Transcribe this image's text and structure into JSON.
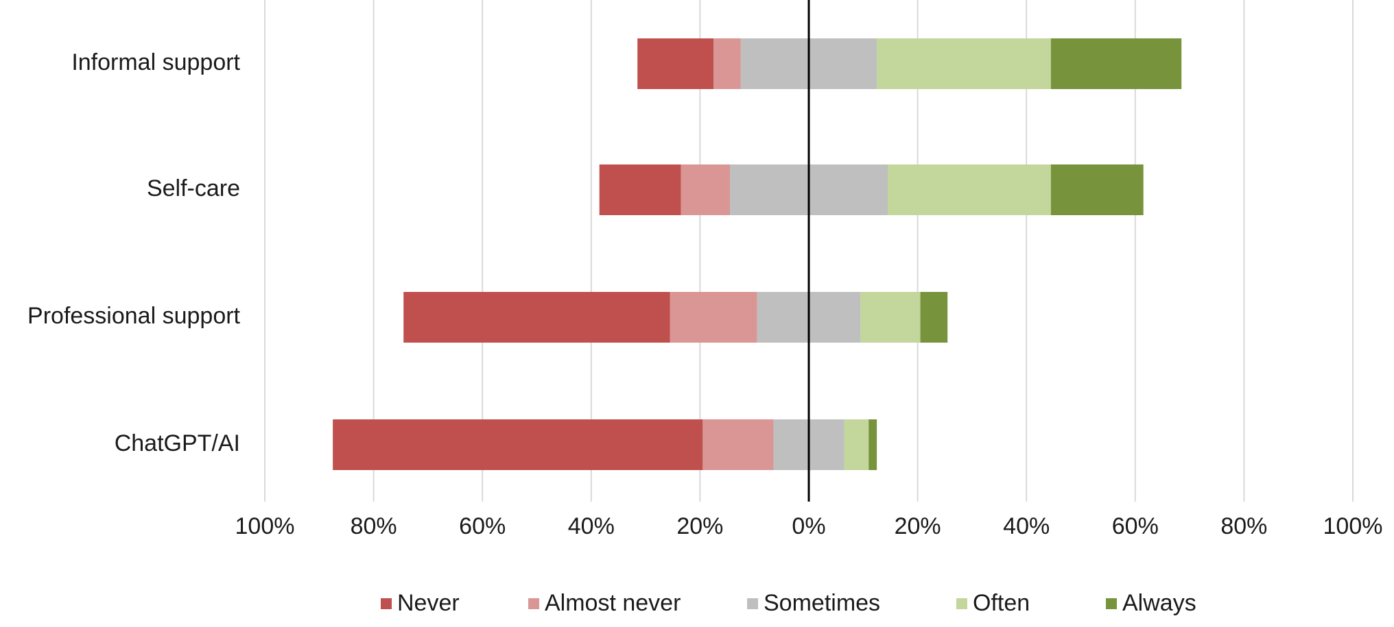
{
  "chart_data": {
    "type": "diverging_bar",
    "categories": [
      "Informal support",
      "Self-care",
      "Professional support",
      "ChatGPT/AI"
    ],
    "series": [
      {
        "name": "Never",
        "color": "#c0504d",
        "values": [
          14,
          15,
          49,
          68
        ]
      },
      {
        "name": "Almost never",
        "color": "#d99694",
        "values": [
          5,
          9,
          16,
          13
        ]
      },
      {
        "name": "Sometimes",
        "color": "#bfbfbf",
        "values": [
          25,
          29,
          19,
          13
        ]
      },
      {
        "name": "Often",
        "color": "#c3d69b",
        "values": [
          32,
          30,
          11,
          4.5
        ]
      },
      {
        "name": "Always",
        "color": "#77933c",
        "values": [
          24,
          17,
          5,
          1.5
        ]
      }
    ],
    "xlim": [
      -100,
      100
    ],
    "xticks": [
      {
        "value": -100,
        "label": "100%"
      },
      {
        "value": -80,
        "label": "80%"
      },
      {
        "value": -60,
        "label": "60%"
      },
      {
        "value": -40,
        "label": "40%"
      },
      {
        "value": -20,
        "label": "20%"
      },
      {
        "value": 0,
        "label": "0%"
      },
      {
        "value": 20,
        "label": "20%"
      },
      {
        "value": 40,
        "label": "40%"
      },
      {
        "value": 60,
        "label": "60%"
      },
      {
        "value": 80,
        "label": "80%"
      },
      {
        "value": 100,
        "label": "100%"
      }
    ],
    "grid": true,
    "legend": "bottom"
  }
}
